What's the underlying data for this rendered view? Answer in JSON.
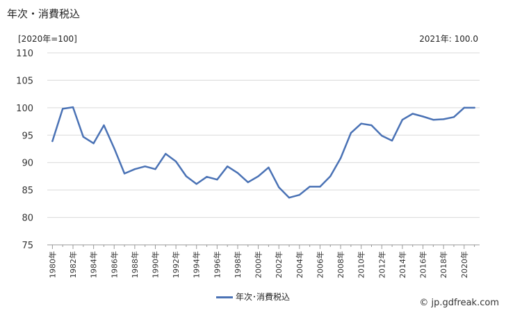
{
  "header": {
    "title": "年次・消費税込",
    "unit": "[2020年=100]",
    "latest_note": "2021年: 100.0"
  },
  "legend": {
    "label": "年次･消費税込"
  },
  "credit": {
    "text": "© jp.gdfreak.com"
  },
  "colors": {
    "series": "#4a72b5",
    "grid": "#d9d9d9",
    "axis": "#999999"
  },
  "chart_data": {
    "type": "line",
    "ylim": [
      75,
      110
    ],
    "yticks": [
      75,
      80,
      85,
      90,
      95,
      100,
      105,
      110
    ],
    "xtick_labels": [
      "1980年",
      "1982年",
      "1984年",
      "1986年",
      "1988年",
      "1990年",
      "1992年",
      "1994年",
      "1996年",
      "1998年",
      "2000年",
      "2002年",
      "2004年",
      "2006年",
      "2008年",
      "2010年",
      "2012年",
      "2014年",
      "2016年",
      "2018年",
      "2020年"
    ],
    "x": [
      1980,
      1981,
      1982,
      1983,
      1984,
      1985,
      1986,
      1987,
      1988,
      1989,
      1990,
      1991,
      1992,
      1993,
      1994,
      1995,
      1996,
      1997,
      1998,
      1999,
      2000,
      2001,
      2002,
      2003,
      2004,
      2005,
      2006,
      2007,
      2008,
      2009,
      2010,
      2011,
      2012,
      2013,
      2014,
      2015,
      2016,
      2017,
      2018,
      2019,
      2020,
      2021
    ],
    "series": [
      {
        "name": "年次･消費税込",
        "values": [
          93.9,
          99.8,
          100.1,
          94.7,
          93.5,
          96.8,
          92.6,
          88.0,
          88.8,
          89.3,
          88.8,
          91.6,
          90.2,
          87.5,
          86.1,
          87.4,
          86.9,
          89.3,
          88.1,
          86.4,
          87.5,
          89.1,
          85.5,
          83.6,
          84.1,
          85.6,
          85.6,
          87.5,
          90.8,
          95.4,
          97.1,
          96.8,
          94.9,
          94.0,
          97.8,
          98.9,
          98.4,
          97.8,
          97.9,
          98.3,
          100.0,
          100.0
        ]
      }
    ]
  }
}
